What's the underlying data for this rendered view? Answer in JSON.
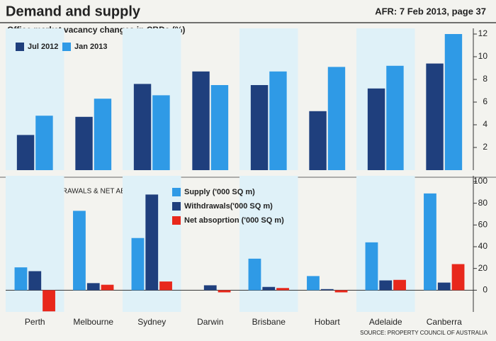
{
  "header": {
    "title": "Demand and supply",
    "source_ref": "AFR: 7 Feb 2013, page 37"
  },
  "chart_data": [
    {
      "type": "bar",
      "title": "Office market vacancy changes in CBDs (%)",
      "series": [
        {
          "name": "Jul 2012",
          "color": "#1f3f7d",
          "values": [
            3.1,
            4.7,
            7.6,
            8.7,
            7.5,
            5.2,
            7.2,
            9.4
          ]
        },
        {
          "name": "Jan 2013",
          "color": "#2f9ae6",
          "values": [
            4.8,
            6.3,
            6.6,
            7.5,
            8.7,
            9.1,
            9.2,
            12.0
          ]
        }
      ],
      "ylim": [
        0,
        12
      ],
      "yticks": [
        2,
        4,
        6,
        8,
        10,
        12
      ],
      "legend": "upper left"
    },
    {
      "type": "bar",
      "title": "SUPPLY, WITHDRAWALS & NET ABSORPTION",
      "categories": [
        "Perth",
        "Melbourne",
        "Sydney",
        "Darwin",
        "Brisbane",
        "Hobart",
        "Adelaide",
        "Canberra"
      ],
      "series": [
        {
          "name": "Supply ('000 SQ m)",
          "color": "#2f9ae6",
          "values": [
            21,
            73,
            48,
            0,
            29,
            13,
            44,
            89
          ]
        },
        {
          "name": "Withdrawals('000 SQ m)",
          "color": "#1f3f7d",
          "values": [
            17.5,
            6.5,
            88,
            4.5,
            3,
            1,
            9,
            7
          ]
        },
        {
          "name": "Net absoprtion ('000 SQ m)",
          "color": "#e8281c",
          "values": [
            -19.5,
            5,
            8,
            -2,
            2,
            -2,
            9.5,
            24
          ]
        }
      ],
      "ylim": [
        -20,
        100
      ],
      "yticks": [
        0,
        20,
        40,
        60,
        80,
        100
      ],
      "legend": "upper center"
    }
  ],
  "source": "SOURCE: PROPERTY COUNCIL OF AUSTRALIA"
}
